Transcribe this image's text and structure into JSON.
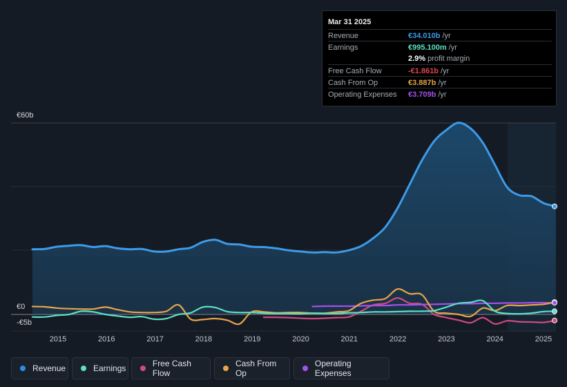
{
  "tooltip": {
    "date": "Mar 31 2025",
    "rows": [
      {
        "label": "Revenue",
        "value": "€34.010b",
        "unit": "/yr",
        "color": "#3d9be9"
      },
      {
        "label": "Earnings",
        "value": "€995.100m",
        "unit": "/yr",
        "color": "#5de0c5"
      },
      {
        "label": "",
        "value": "2.9%",
        "unit": "profit margin",
        "color": "#ffffff"
      },
      {
        "label": "Free Cash Flow",
        "value": "-€1.861b",
        "unit": "/yr",
        "color": "#e0434e"
      },
      {
        "label": "Cash From Op",
        "value": "€3.887b",
        "unit": "/yr",
        "color": "#e8a54b"
      },
      {
        "label": "Operating Expenses",
        "value": "€3.709b",
        "unit": "/yr",
        "color": "#a451e8"
      }
    ]
  },
  "legend": [
    {
      "label": "Revenue",
      "color": "#2f8be6"
    },
    {
      "label": "Earnings",
      "color": "#5de0c5"
    },
    {
      "label": "Free Cash Flow",
      "color": "#cf4a83"
    },
    {
      "label": "Cash From Op",
      "color": "#e8a54b"
    },
    {
      "label": "Operating Expenses",
      "color": "#a451e8"
    }
  ],
  "chart_data": {
    "type": "area",
    "title": "",
    "xlabel": "",
    "ylabel": "",
    "ylim": [
      -5,
      60
    ],
    "x_ticks": [
      "2015",
      "2016",
      "2017",
      "2018",
      "2019",
      "2020",
      "2021",
      "2022",
      "2023",
      "2024",
      "2025"
    ],
    "y_labels": [
      "€60b",
      "€0",
      "-€5b"
    ],
    "series": [
      {
        "name": "Revenue",
        "color": "#3d9be9",
        "x": [
          2014.5,
          2014.75,
          2015.0,
          2015.25,
          2015.5,
          2015.75,
          2016.0,
          2016.25,
          2016.5,
          2016.75,
          2017.0,
          2017.25,
          2017.5,
          2017.75,
          2018.0,
          2018.25,
          2018.5,
          2018.75,
          2019.0,
          2019.25,
          2019.5,
          2019.75,
          2020.0,
          2020.25,
          2020.5,
          2020.75,
          2021.0,
          2021.25,
          2021.5,
          2021.75,
          2022.0,
          2022.25,
          2022.5,
          2022.75,
          2023.0,
          2023.25,
          2023.5,
          2023.75,
          2024.0,
          2024.25,
          2024.5,
          2024.75,
          2025.0,
          2025.25
        ],
        "values": [
          20.5,
          20.6,
          21.3,
          21.6,
          21.8,
          21.2,
          21.5,
          20.8,
          20.5,
          20.6,
          19.8,
          19.8,
          20.5,
          21.0,
          22.8,
          23.5,
          22.2,
          22.0,
          21.3,
          21.2,
          20.8,
          20.2,
          19.8,
          19.5,
          19.6,
          19.5,
          20.2,
          21.5,
          24.0,
          27.5,
          33.5,
          41.0,
          48.5,
          54.5,
          58.0,
          60.3,
          58.5,
          54.0,
          47.0,
          40.0,
          37.5,
          37.2,
          35.0,
          34.0
        ]
      },
      {
        "name": "Earnings",
        "color": "#5de0c5",
        "x": [
          2014.5,
          2014.75,
          2015.0,
          2015.25,
          2015.5,
          2015.75,
          2016.0,
          2016.25,
          2016.5,
          2016.75,
          2017.0,
          2017.25,
          2017.5,
          2017.75,
          2018.0,
          2018.25,
          2018.5,
          2018.75,
          2019.0,
          2019.25,
          2019.5,
          2019.75,
          2020.0,
          2020.25,
          2020.5,
          2020.75,
          2021.0,
          2021.25,
          2021.5,
          2021.75,
          2022.0,
          2022.25,
          2022.5,
          2022.75,
          2023.0,
          2023.25,
          2023.5,
          2023.75,
          2024.0,
          2024.25,
          2024.5,
          2024.75,
          2025.0,
          2025.25
        ],
        "values": [
          -0.8,
          -0.8,
          -0.3,
          0.0,
          1.0,
          0.8,
          0.0,
          -0.5,
          -0.9,
          -0.7,
          -1.5,
          -1.3,
          0.0,
          0.5,
          2.3,
          2.2,
          0.9,
          0.6,
          0.6,
          0.4,
          0.3,
          0.3,
          0.2,
          0.4,
          0.3,
          0.3,
          0.5,
          0.6,
          0.8,
          0.8,
          0.9,
          1.0,
          1.0,
          1.2,
          2.3,
          3.5,
          3.8,
          4.3,
          1.0,
          0.3,
          0.2,
          0.4,
          0.9,
          1.0
        ]
      },
      {
        "name": "Free Cash Flow",
        "color": "#cf4a83",
        "x": [
          2019.25,
          2019.5,
          2019.75,
          2020.0,
          2020.25,
          2020.5,
          2020.75,
          2021.0,
          2021.25,
          2021.5,
          2021.75,
          2022.0,
          2022.25,
          2022.5,
          2022.75,
          2023.0,
          2023.25,
          2023.5,
          2023.75,
          2024.0,
          2024.25,
          2024.5,
          2024.75,
          2025.0,
          2025.25
        ],
        "values": [
          -0.9,
          -0.9,
          -1.0,
          -1.2,
          -1.3,
          -1.2,
          -1.0,
          -0.8,
          1.0,
          3.0,
          3.5,
          5.2,
          3.5,
          3.2,
          0.0,
          -1.0,
          -1.8,
          -2.6,
          -1.0,
          -3.0,
          -2.0,
          -2.3,
          -2.4,
          -2.5,
          -1.9
        ]
      },
      {
        "name": "Cash From Op",
        "color": "#e8a54b",
        "x": [
          2014.5,
          2014.75,
          2015.0,
          2015.25,
          2015.5,
          2015.75,
          2016.0,
          2016.25,
          2016.5,
          2016.75,
          2017.0,
          2017.25,
          2017.5,
          2017.75,
          2018.0,
          2018.25,
          2018.5,
          2018.75,
          2019.0,
          2019.25,
          2019.5,
          2019.75,
          2020.0,
          2020.25,
          2020.5,
          2020.75,
          2021.0,
          2021.25,
          2021.5,
          2021.75,
          2022.0,
          2022.25,
          2022.5,
          2022.75,
          2023.0,
          2023.25,
          2023.5,
          2023.75,
          2024.0,
          2024.25,
          2024.5,
          2024.75,
          2025.0,
          2025.25
        ],
        "values": [
          2.5,
          2.4,
          2.0,
          1.8,
          1.7,
          1.7,
          2.3,
          1.5,
          0.8,
          0.6,
          0.6,
          1.0,
          3.0,
          -1.5,
          -1.6,
          -1.3,
          -1.8,
          -3.0,
          0.8,
          0.8,
          0.5,
          0.6,
          0.6,
          0.4,
          0.4,
          0.8,
          1.2,
          3.5,
          4.5,
          5.0,
          8.0,
          6.5,
          6.2,
          1.0,
          0.4,
          0.0,
          -0.6,
          2.0,
          1.2,
          2.8,
          2.8,
          3.0,
          3.2,
          3.9
        ]
      },
      {
        "name": "Operating Expenses",
        "color": "#a451e8",
        "x": [
          2020.25,
          2020.5,
          2020.75,
          2021.0,
          2021.25,
          2021.5,
          2021.75,
          2022.0,
          2022.25,
          2022.5,
          2022.75,
          2023.0,
          2023.25,
          2023.5,
          2023.75,
          2024.0,
          2024.25,
          2024.5,
          2024.75,
          2025.0,
          2025.25
        ],
        "values": [
          2.5,
          2.6,
          2.6,
          2.6,
          2.7,
          2.8,
          2.8,
          3.0,
          3.0,
          3.1,
          3.2,
          3.3,
          3.4,
          3.4,
          3.5,
          3.5,
          3.6,
          3.6,
          3.7,
          3.7,
          3.7
        ]
      }
    ]
  }
}
